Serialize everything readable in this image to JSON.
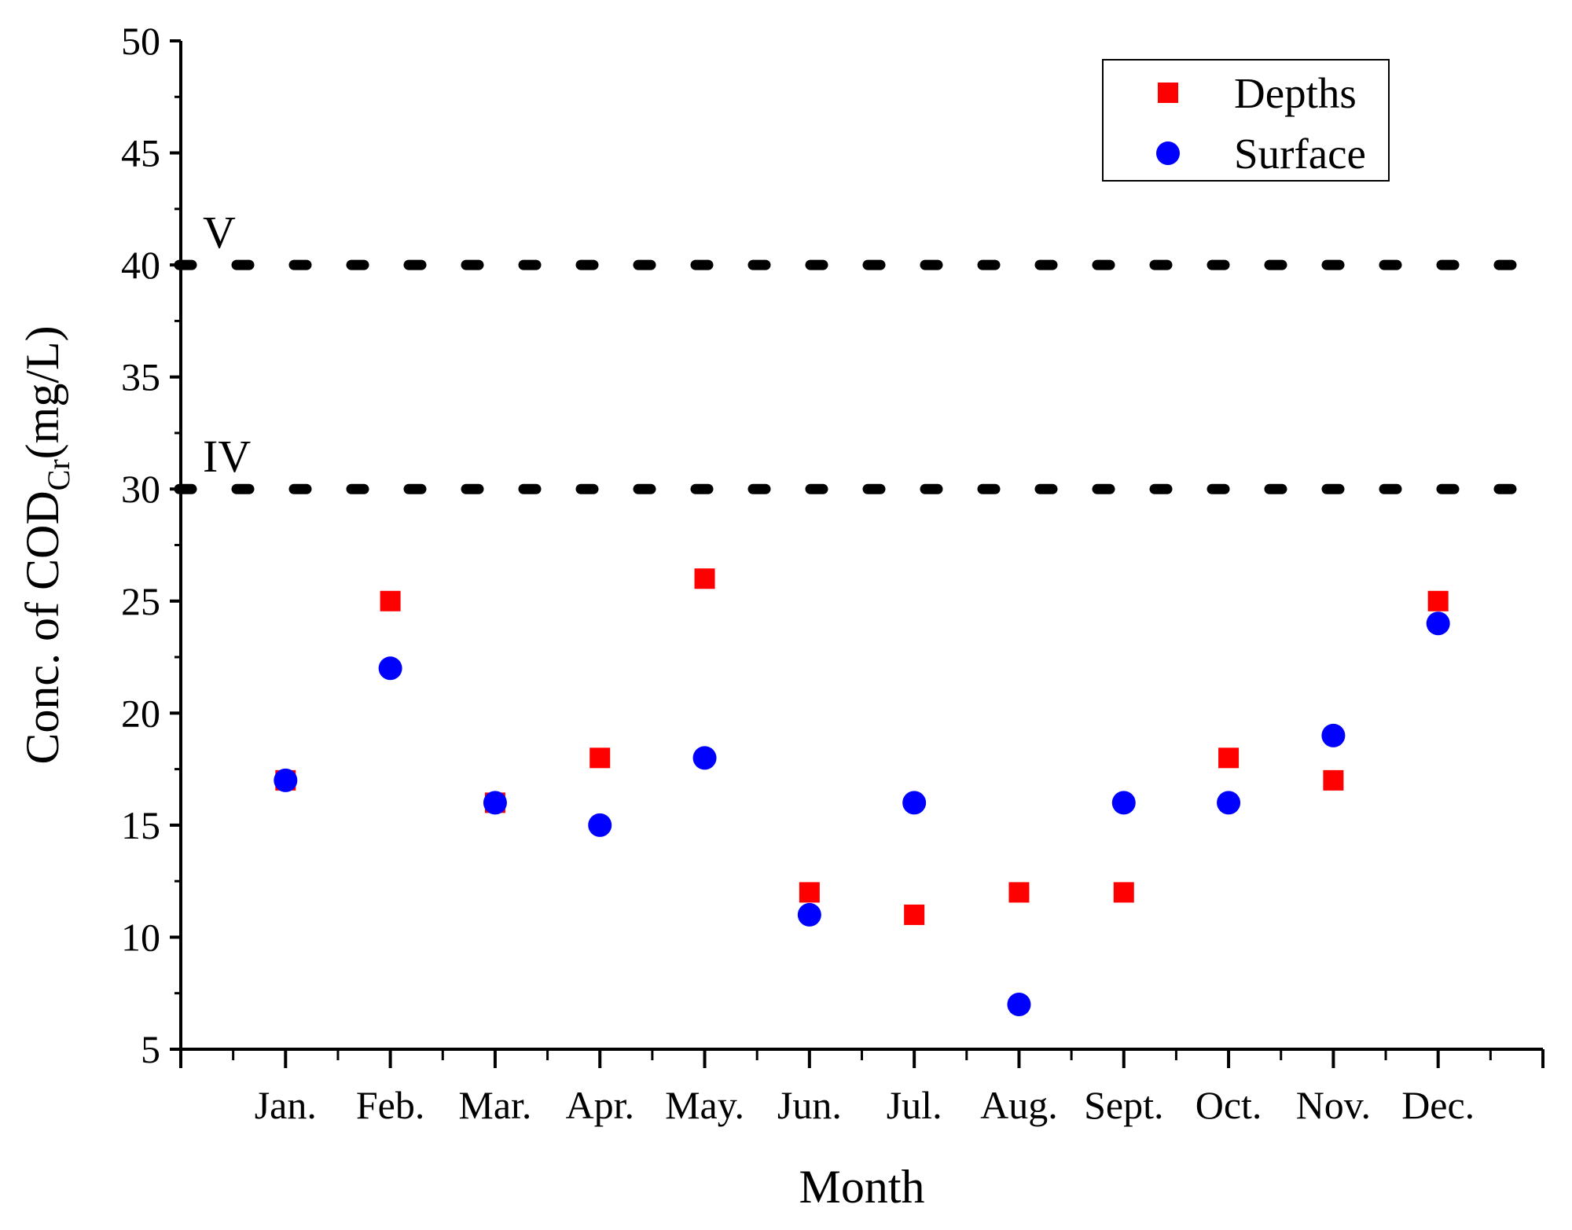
{
  "chart_data": {
    "type": "scatter",
    "title": "",
    "xlabel": "Month",
    "ylabel": {
      "prefix": "Conc. of COD",
      "subscript": "Cr",
      "suffix": "(mg/L)"
    },
    "ylim": [
      5,
      50
    ],
    "yticks": [
      5,
      10,
      15,
      20,
      25,
      30,
      35,
      40,
      45,
      50
    ],
    "categories": [
      "Jan.",
      "Feb.",
      "Mar.",
      "Apr.",
      "May.",
      "Jun.",
      "Jul.",
      "Aug.",
      "Sept.",
      "Oct.",
      "Nov.",
      "Dec."
    ],
    "series": [
      {
        "name": "Depths",
        "marker": "square",
        "color": "#ff0000",
        "values": [
          17,
          25,
          16,
          18,
          26,
          12,
          11,
          12,
          12,
          18,
          17,
          25
        ]
      },
      {
        "name": "Surface",
        "marker": "circle",
        "color": "#0000ff",
        "values": [
          17,
          22,
          16,
          15,
          18,
          11,
          16,
          7,
          16,
          16,
          19,
          24
        ]
      }
    ],
    "reference_lines": [
      {
        "label": "V",
        "value": 40
      },
      {
        "label": "IV",
        "value": 30
      }
    ],
    "legend": {
      "position": "top-right"
    },
    "grid": false
  }
}
